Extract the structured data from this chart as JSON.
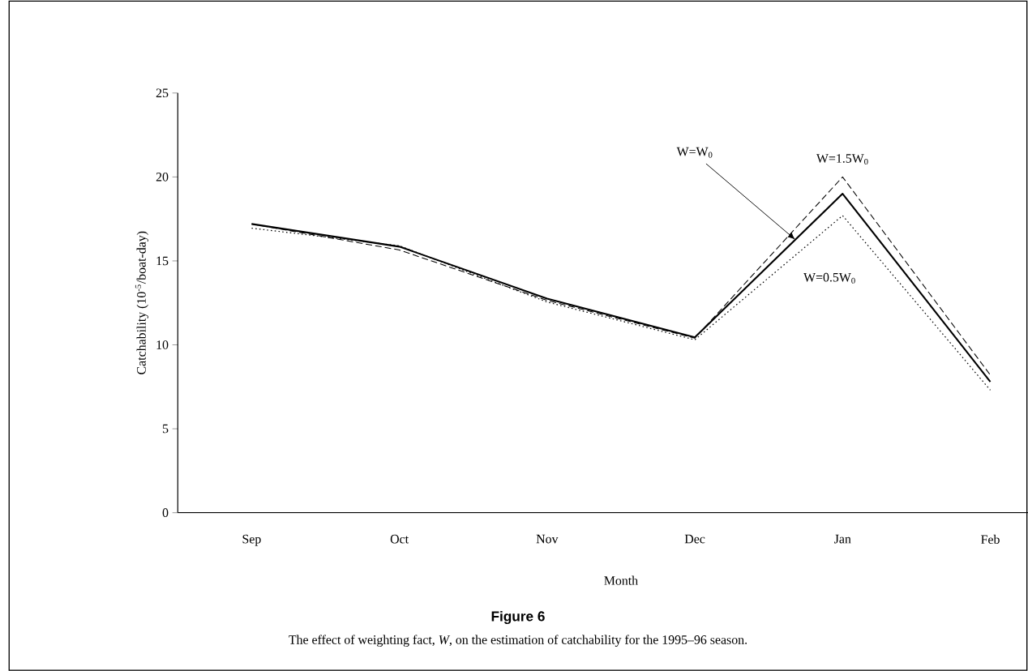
{
  "chart_data": {
    "type": "line",
    "title": "Figure 6",
    "subtitle": "The effect of weighting fact, *W*, on the estimation of catchability for the 1995–96 season.",
    "xlabel": "Month",
    "ylabel": "Catchability (10$^{-5}$/boat-day)",
    "categories": [
      "Sep",
      "Oct",
      "Nov",
      "Dec",
      "Jan",
      "Feb"
    ],
    "series": [
      {
        "name": "W=W$_{0}$",
        "color": "#000000",
        "line_style": "solid",
        "values": [
          17.2,
          15.85,
          12.75,
          10.45,
          19.0,
          7.8
        ]
      },
      {
        "name": "W=1.5W$_{0}$",
        "color": "#000000",
        "line_style": "dashed",
        "values": [
          17.2,
          15.65,
          12.65,
          10.4,
          20.0,
          8.2
        ]
      },
      {
        "name": "W=0.5W$_{0}$",
        "color": "#000000",
        "line_style": "dotted",
        "values": [
          16.95,
          15.9,
          12.55,
          10.3,
          17.7,
          7.3
        ]
      }
    ],
    "ylim": [
      0,
      25
    ],
    "yticks": [
      0,
      5,
      10,
      15,
      20,
      25
    ],
    "grid": false,
    "legend": false,
    "marker": "none"
  }
}
